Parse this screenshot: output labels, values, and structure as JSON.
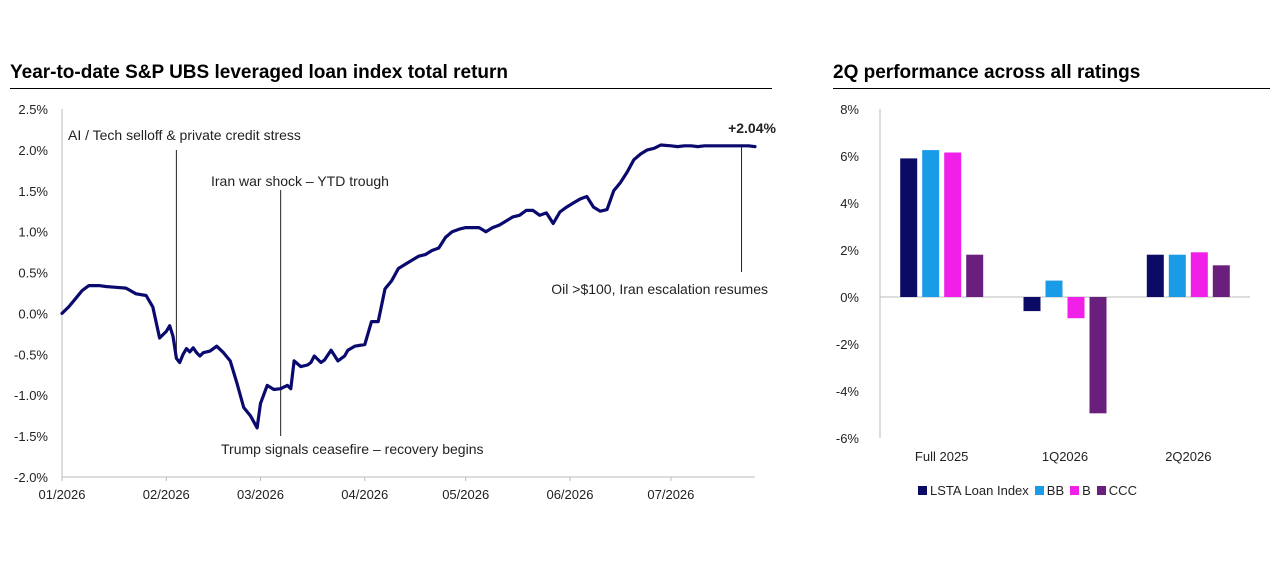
{
  "chart_data": [
    {
      "type": "line",
      "title": "Year-to-date S&P UBS leveraged loan index total return",
      "ylim": [
        -0.02,
        0.025
      ],
      "y_ticks": [
        "-2.0%",
        "-1.5%",
        "-1.0%",
        "-0.5%",
        "0.0%",
        "0.5%",
        "1.0%",
        "1.5%",
        "2.0%",
        "2.5%"
      ],
      "y_tick_values": [
        -0.02,
        -0.015,
        -0.01,
        -0.005,
        0,
        0.005,
        0.01,
        0.015,
        0.02,
        0.025
      ],
      "x_ticks": [
        "01/2026",
        "02/2026",
        "03/2026",
        "04/2026",
        "05/2026",
        "06/2026",
        "07/2026"
      ],
      "x_tick_dates": [
        "2026-01-01",
        "2026-02-01",
        "2026-03-01",
        "2026-04-01",
        "2026-05-01",
        "2026-06-01",
        "2026-07-01"
      ],
      "x_range": [
        "2026-01-01",
        "2026-07-26"
      ],
      "grid": false,
      "line_color": "#0a0a6e",
      "series": [
        {
          "x": [
            "2026-01-01",
            "2026-01-03",
            "2026-01-05",
            "2026-01-07",
            "2026-01-09",
            "2026-01-12",
            "2026-01-14",
            "2026-01-17",
            "2026-01-20",
            "2026-01-23",
            "2026-01-26",
            "2026-01-28",
            "2026-01-30",
            "2026-02-01",
            "2026-02-02",
            "2026-02-03",
            "2026-02-04",
            "2026-02-05",
            "2026-02-06",
            "2026-02-07",
            "2026-02-08",
            "2026-02-09",
            "2026-02-10",
            "2026-02-11",
            "2026-02-12",
            "2026-02-14",
            "2026-02-16",
            "2026-02-18",
            "2026-02-20",
            "2026-02-22",
            "2026-02-24",
            "2026-02-26",
            "2026-02-28",
            "2026-03-01",
            "2026-03-03",
            "2026-03-05",
            "2026-03-07",
            "2026-03-08",
            "2026-03-09",
            "2026-03-10",
            "2026-03-11",
            "2026-03-13",
            "2026-03-15",
            "2026-03-16",
            "2026-03-17",
            "2026-03-19",
            "2026-03-20",
            "2026-03-22",
            "2026-03-24",
            "2026-03-26",
            "2026-03-27",
            "2026-03-29",
            "2026-04-01",
            "2026-04-03",
            "2026-04-05",
            "2026-04-07",
            "2026-04-09",
            "2026-04-11",
            "2026-04-13",
            "2026-04-15",
            "2026-04-17",
            "2026-04-19",
            "2026-04-21",
            "2026-04-23",
            "2026-04-25",
            "2026-04-27",
            "2026-04-29",
            "2026-05-01",
            "2026-05-03",
            "2026-05-05",
            "2026-05-07",
            "2026-05-09",
            "2026-05-11",
            "2026-05-13",
            "2026-05-15",
            "2026-05-17",
            "2026-05-19",
            "2026-05-21",
            "2026-05-23",
            "2026-05-25",
            "2026-05-27",
            "2026-05-29",
            "2026-05-31",
            "2026-06-02",
            "2026-06-04",
            "2026-06-06",
            "2026-06-08",
            "2026-06-10",
            "2026-06-12",
            "2026-06-14",
            "2026-06-16",
            "2026-06-18",
            "2026-06-20",
            "2026-06-22",
            "2026-06-24",
            "2026-06-26",
            "2026-06-28",
            "2026-07-01",
            "2026-07-03",
            "2026-07-05",
            "2026-07-07",
            "2026-07-09",
            "2026-07-11",
            "2026-07-13",
            "2026-07-15",
            "2026-07-17",
            "2026-07-19",
            "2026-07-21",
            "2026-07-23",
            "2026-07-24",
            "2026-07-26"
          ],
          "y": [
            0.0,
            0.0008,
            0.0018,
            0.0028,
            0.0034,
            0.0034,
            0.0033,
            0.0032,
            0.0031,
            0.0024,
            0.0022,
            0.0008,
            -0.003,
            -0.0022,
            -0.0015,
            -0.0028,
            -0.0055,
            -0.006,
            -0.005,
            -0.0043,
            -0.0047,
            -0.0042,
            -0.0048,
            -0.0052,
            -0.0048,
            -0.0046,
            -0.004,
            -0.0048,
            -0.0058,
            -0.0085,
            -0.0115,
            -0.0125,
            -0.014,
            -0.011,
            -0.0088,
            -0.0093,
            -0.0092,
            -0.009,
            -0.0088,
            -0.0092,
            -0.0058,
            -0.0065,
            -0.0063,
            -0.006,
            -0.0052,
            -0.006,
            -0.0057,
            -0.0045,
            -0.0058,
            -0.0052,
            -0.0045,
            -0.004,
            -0.0038,
            -0.001,
            -0.001,
            0.003,
            0.004,
            0.0055,
            0.006,
            0.0065,
            0.007,
            0.0072,
            0.0077,
            0.008,
            0.0093,
            0.01,
            0.0103,
            0.0105,
            0.0105,
            0.0105,
            0.01,
            0.0105,
            0.0108,
            0.0113,
            0.0118,
            0.012,
            0.0126,
            0.0126,
            0.012,
            0.0123,
            0.011,
            0.0124,
            0.013,
            0.0135,
            0.014,
            0.0143,
            0.013,
            0.0125,
            0.0127,
            0.015,
            0.016,
            0.0173,
            0.0188,
            0.0195,
            0.02,
            0.0202,
            0.0206,
            0.0205,
            0.0204,
            0.0205,
            0.0205,
            0.0204,
            0.0205,
            0.0205,
            0.0205,
            0.0205,
            0.0205,
            0.0205,
            0.0205,
            0.0205,
            0.0204
          ]
        }
      ],
      "end_label": "+2.04%",
      "annotations": [
        {
          "text": "AI / Tech selloff & private credit stress",
          "x": "2026-02-04",
          "y": -0.0055
        },
        {
          "text": "Iran war shock – YTD trough",
          "x": "2026-03-07",
          "y": -0.014
        },
        {
          "text": "Trump signals ceasefire – recovery begins",
          "x": "2026-03-07",
          "y": -0.014
        },
        {
          "text": "Oil >$100, Iran escalation resumes",
          "x": "2026-07-22",
          "y": 0.0204
        }
      ]
    },
    {
      "type": "bar",
      "title": "2Q performance across all ratings",
      "categories": [
        "Full 2025",
        "1Q2026",
        "2Q2026"
      ],
      "ylim": [
        -0.06,
        0.08
      ],
      "y_ticks": [
        "-6%",
        "-4%",
        "-2%",
        "0%",
        "2%",
        "4%",
        "6%",
        "8%"
      ],
      "y_tick_values": [
        -0.06,
        -0.04,
        -0.02,
        0,
        0.02,
        0.04,
        0.06,
        0.08
      ],
      "grid": false,
      "legend_position": "bottom",
      "series": [
        {
          "name": "LSTA Loan Index",
          "color": "#0b0b66",
          "values": [
            0.059,
            -0.006,
            0.018
          ]
        },
        {
          "name": "BB",
          "color": "#1a9be8",
          "values": [
            0.0625,
            0.007,
            0.018
          ]
        },
        {
          "name": "B",
          "color": "#f020e8",
          "values": [
            0.0615,
            -0.009,
            0.019
          ]
        },
        {
          "name": "CCC",
          "color": "#6b1f7d",
          "values": [
            0.018,
            -0.0495,
            0.0135
          ]
        }
      ]
    }
  ]
}
